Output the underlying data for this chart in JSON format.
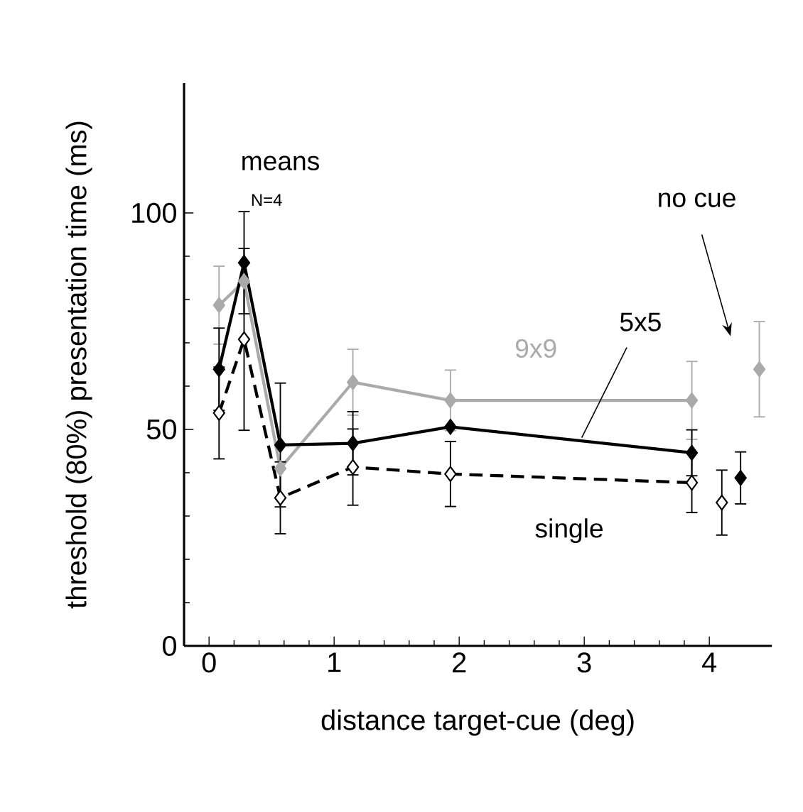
{
  "chart_data": {
    "type": "line",
    "xlabel": "distance target-cue (deg)",
    "ylabel": "threshold (80%) presentation time (ms)",
    "xlim": [
      -0.2,
      4.5
    ],
    "ylim": [
      0,
      130
    ],
    "xticks": [
      0,
      1,
      2,
      3,
      4
    ],
    "yticks": [
      0,
      50,
      100
    ],
    "marker": "diamond",
    "grid": false,
    "annotations": [
      "means",
      "N=4",
      "no cue"
    ],
    "series": [
      {
        "name": "9x9",
        "color": "#aaaaaa",
        "line_style": "solid",
        "x": [
          0.08,
          0.28,
          0.57,
          1.15,
          1.93,
          3.86
        ],
        "values": [
          78.7,
          84.2,
          41.0,
          60.9,
          56.7,
          56.7
        ],
        "errors": [
          9,
          null,
          null,
          7.6,
          7,
          9
        ]
      },
      {
        "name": "5x5",
        "color": "#000000",
        "line_style": "solid",
        "x": [
          0.08,
          0.28,
          0.57,
          1.15,
          1.93,
          3.86
        ],
        "values": [
          63.9,
          88.5,
          46.4,
          46.8,
          50.6,
          44.6
        ],
        "errors": [
          9.5,
          11.8,
          14.3,
          7.3,
          null,
          5.3
        ]
      },
      {
        "name": "single",
        "color": "#000000",
        "colors": [
          "#ffffff",
          "#ffffff",
          "#ffffff",
          "#ffffff",
          "#ffffff",
          "#ffffff"
        ],
        "line_style": "dashed",
        "x": [
          0.08,
          0.28,
          0.57,
          1.15,
          1.93,
          3.86
        ],
        "values": [
          53.8,
          70.8,
          34.2,
          41.3,
          39.7,
          37.7
        ],
        "errors": [
          10.6,
          21,
          8.3,
          8.8,
          7.5,
          6.9
        ]
      },
      {
        "type": "scatter",
        "color": "#aaaaaa",
        "x": [
          4.4
        ],
        "values": [
          63.9
        ],
        "errors": [
          11
        ]
      },
      {
        "type": "scatter",
        "color": "#000000",
        "colors": [
          "#ffffff"
        ],
        "x": [
          4.1
        ],
        "values": [
          33.1
        ],
        "errors": [
          7.5
        ]
      },
      {
        "type": "scatter",
        "color": "#000000",
        "x": [
          4.25
        ],
        "values": [
          38.8
        ],
        "errors": [
          6
        ]
      }
    ]
  }
}
